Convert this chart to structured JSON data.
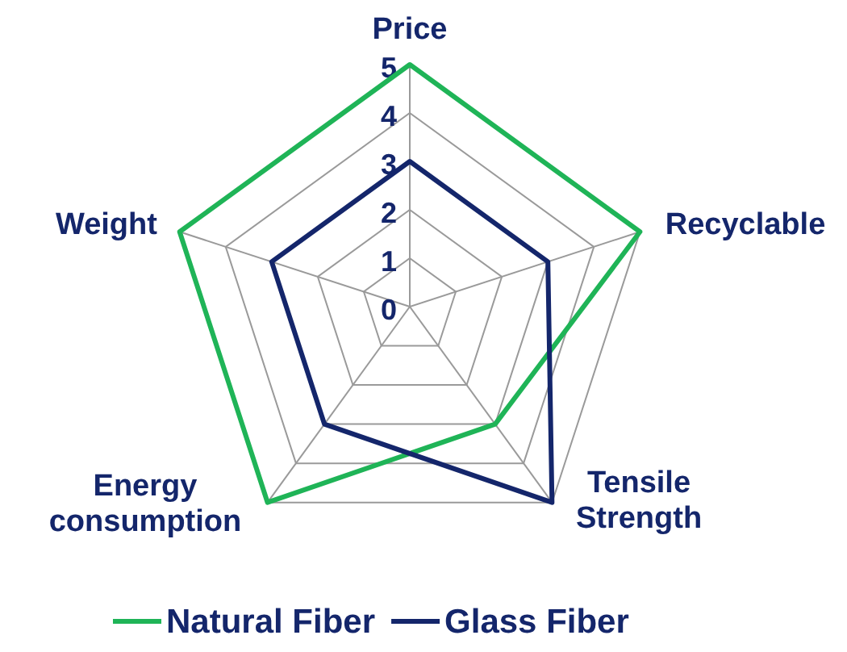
{
  "chart_data": {
    "type": "radar",
    "categories": [
      "Price",
      "Recyclable",
      "Tensile Strength",
      "Energy consumption",
      "Weight"
    ],
    "series": [
      {
        "name": "Natural Fiber",
        "color": "#1fb457",
        "values": [
          5,
          5,
          3,
          5,
          5
        ]
      },
      {
        "name": "Glass Fiber",
        "color": "#14266b",
        "values": [
          3,
          3,
          5,
          3,
          3
        ]
      }
    ],
    "ylim": [
      0,
      5
    ],
    "yticks": [
      0,
      1,
      2,
      3,
      4,
      5
    ],
    "grid": true,
    "legend": "bottom"
  }
}
